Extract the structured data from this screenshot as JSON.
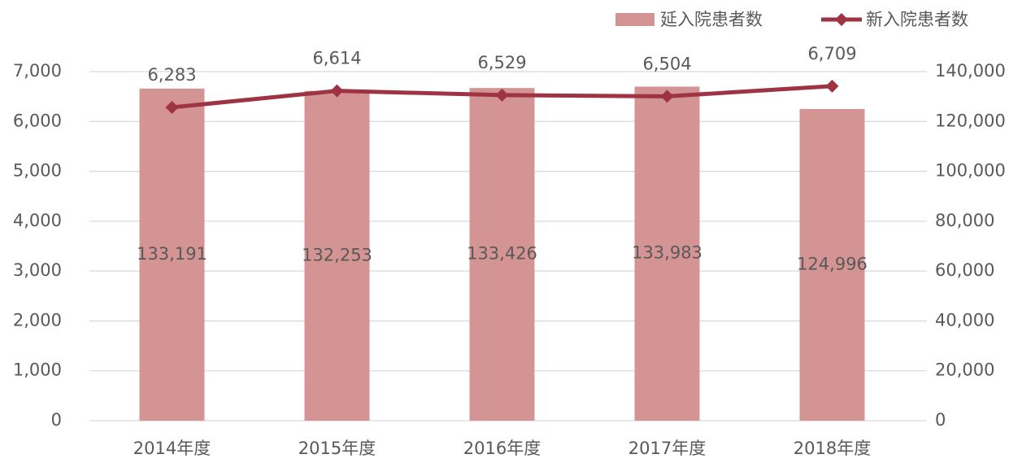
{
  "chart_data": {
    "type": "bar-line",
    "categories": [
      "2014年度",
      "2015年度",
      "2016年度",
      "2017年度",
      "2018年度"
    ],
    "series": [
      {
        "name": "延入院患者数",
        "type": "bar",
        "axis": "y2",
        "color": "#d49494",
        "values": [
          133191,
          132253,
          133426,
          133983,
          124996
        ],
        "value_labels": [
          "133,191",
          "132,253",
          "133,426",
          "133,983",
          "124,996"
        ]
      },
      {
        "name": "新入院患者数",
        "type": "line",
        "axis": "y",
        "color": "#9e3344",
        "values": [
          6283,
          6614,
          6529,
          6504,
          6709
        ],
        "value_labels": [
          "6,283",
          "6,614",
          "6,529",
          "6,504",
          "6,709"
        ]
      }
    ],
    "ylim": [
      0,
      7000
    ],
    "yticks": [
      0,
      {
        "value": 1000,
        "label": "1,000"
      },
      {
        "value": 2000,
        "label": "2,000"
      },
      {
        "value": 3000,
        "label": "3,000"
      },
      {
        "value": 4000,
        "label": "4,000"
      },
      {
        "value": 5000,
        "label": "5,000"
      },
      {
        "value": 6000,
        "label": "6,000"
      },
      {
        "value": 7000,
        "label": "7,000"
      }
    ],
    "y2lim": [
      0,
      140000
    ],
    "y2ticks": [
      0,
      {
        "value": 20000,
        "label": "20,000"
      },
      {
        "value": 40000,
        "label": "40,000"
      },
      {
        "value": 60000,
        "label": "60,000"
      },
      {
        "value": 80000,
        "label": "80,000"
      },
      {
        "value": 100000,
        "label": "100,000"
      },
      {
        "value": 120000,
        "label": "120,000"
      },
      {
        "value": 140000,
        "label": "140,000"
      }
    ],
    "grid": true,
    "legend": "top-right"
  }
}
